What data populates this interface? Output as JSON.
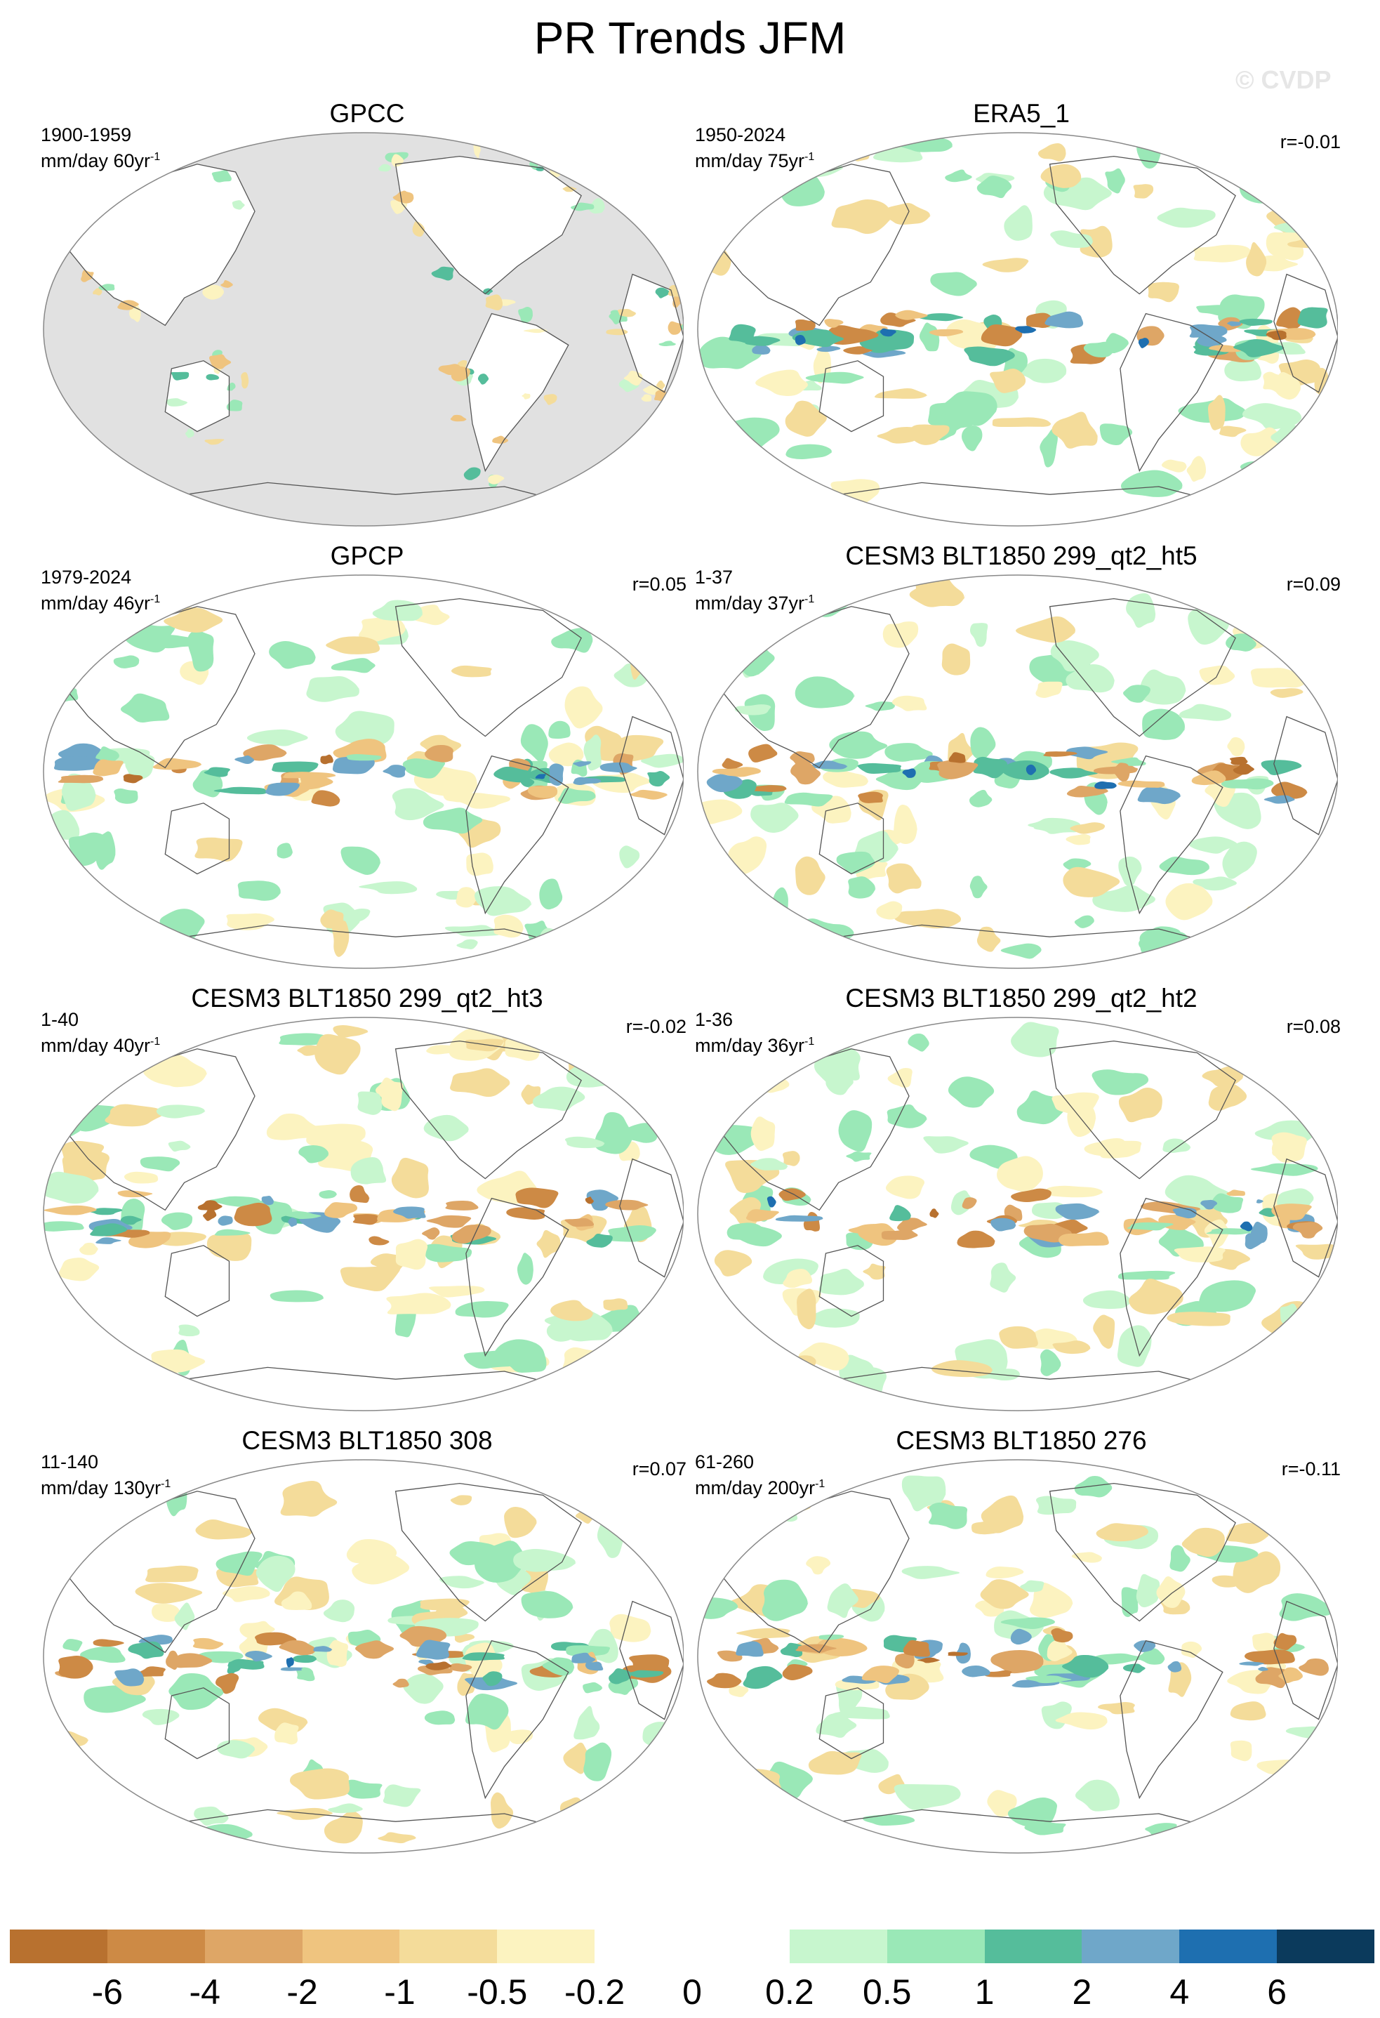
{
  "figure": {
    "title": "PR Trends JFM",
    "watermark": "© CVDP"
  },
  "panels": [
    {
      "title": "GPCC",
      "period": "1900-1959",
      "units_prefix": "mm/day 60yr",
      "units_exp": "-1",
      "correlation": "",
      "coverage": "land-only"
    },
    {
      "title": "ERA5_1",
      "period": "1950-2024",
      "units_prefix": "mm/day 75yr",
      "units_exp": "-1",
      "correlation": "r=-0.01",
      "coverage": "global"
    },
    {
      "title": "GPCP",
      "period": "1979-2024",
      "units_prefix": "mm/day 46yr",
      "units_exp": "-1",
      "correlation": "r=0.05",
      "coverage": "global"
    },
    {
      "title": "CESM3 BLT1850 299_qt2_ht5",
      "period": "1-37",
      "units_prefix": "mm/day 37yr",
      "units_exp": "-1",
      "correlation": "r=0.09",
      "coverage": "global"
    },
    {
      "title": "CESM3 BLT1850 299_qt2_ht3",
      "period": "1-40",
      "units_prefix": "mm/day 40yr",
      "units_exp": "-1",
      "correlation": "r=-0.02",
      "coverage": "global"
    },
    {
      "title": "CESM3 BLT1850 299_qt2_ht2",
      "period": "1-36",
      "units_prefix": "mm/day 36yr",
      "units_exp": "-1",
      "correlation": "r=0.08",
      "coverage": "global"
    },
    {
      "title": "CESM3 BLT1850 308",
      "period": "11-140",
      "units_prefix": "mm/day 130yr",
      "units_exp": "-1",
      "correlation": "r=0.07",
      "coverage": "global"
    },
    {
      "title": "CESM3 BLT1850 276",
      "period": "61-260",
      "units_prefix": "mm/day 200yr",
      "units_exp": "-1",
      "correlation": "r=-0.11",
      "coverage": "global"
    }
  ],
  "colorbar": {
    "colors": [
      "#b8712f",
      "#cd8a45",
      "#dea666",
      "#efc47f",
      "#f4dc9a",
      "#fcf3c0",
      "#ffffff",
      "#ffffff",
      "#c7f6ce",
      "#9ae8b7",
      "#55bd9b",
      "#6fa7c9",
      "#1e6fb0",
      "#0b3a5c"
    ],
    "labels": [
      "-6",
      "-4",
      "-2",
      "-1",
      "-0.5",
      "-0.2",
      "0",
      "0.2",
      "0.5",
      "1",
      "2",
      "4",
      "6"
    ]
  },
  "colors": {
    "land_mask": "#e1e1e1",
    "coastline": "#555555",
    "outline": "#888888"
  }
}
